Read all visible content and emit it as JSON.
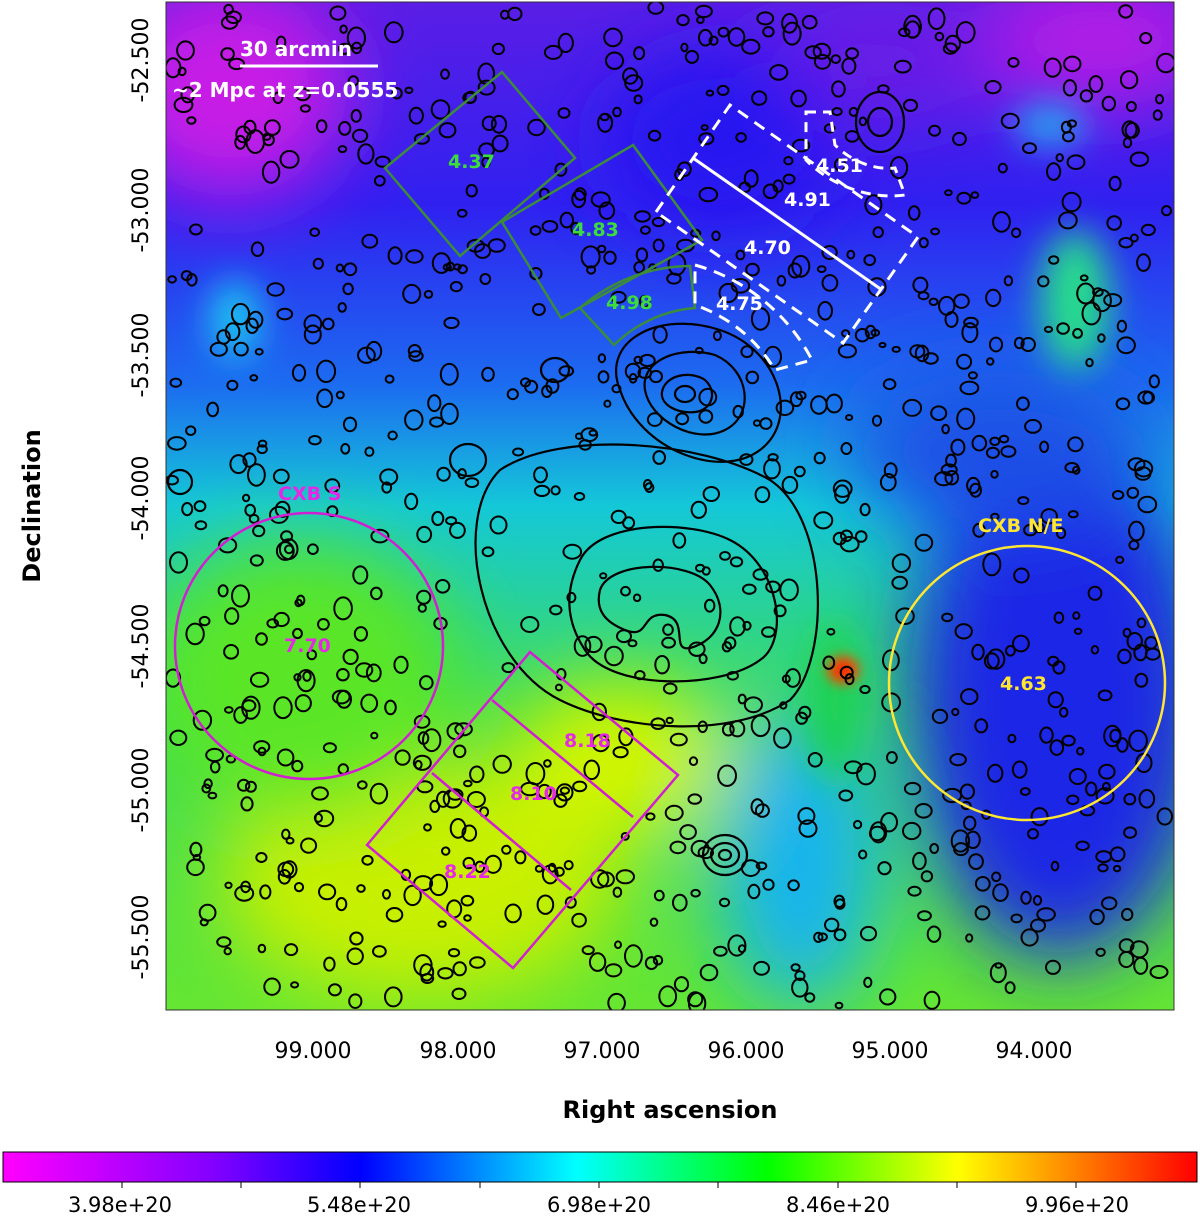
{
  "map": {
    "xlabel": "Right ascension",
    "ylabel": "Declination",
    "ra_ticks": [
      "99.000",
      "98.000",
      "97.000",
      "96.000",
      "95.000",
      "94.000"
    ],
    "dec_ticks": [
      "-52.500",
      "-53.000",
      "-53.500",
      "-54.000",
      "-54.500",
      "-55.000",
      "-55.500"
    ]
  },
  "scalebar": {
    "label_top": "30 arcmin",
    "label_bottom": "~2 Mpc at z=0.0555"
  },
  "colorbar": {
    "labels": [
      "3.98e+20",
      "5.48e+20",
      "6.98e+20",
      "8.46e+20",
      "9.96e+20"
    ]
  },
  "regions": {
    "nw_box_upper": "4.37",
    "nw_box_lower": "4.83",
    "nw_annulus": "4.98",
    "w_annulus_upper": "4.51",
    "w_box_upper": "4.91",
    "w_box_lower": "4.70",
    "w_annulus_lower": "4.75",
    "cxb_s_name": "CXB S",
    "cxb_s_value": "7.70",
    "cxb_ne_name": "CXB N/E",
    "cxb_ne_value": "4.63",
    "se_box_upper": "8.18",
    "se_box_middle": "8.10",
    "se_box_lower": "8.22"
  },
  "colors": {
    "green_regions": "#3c8c3c",
    "white_regions": "#ffffff",
    "magenta_regions": "#d21ed2",
    "yellow_regions": "#ffe632"
  }
}
